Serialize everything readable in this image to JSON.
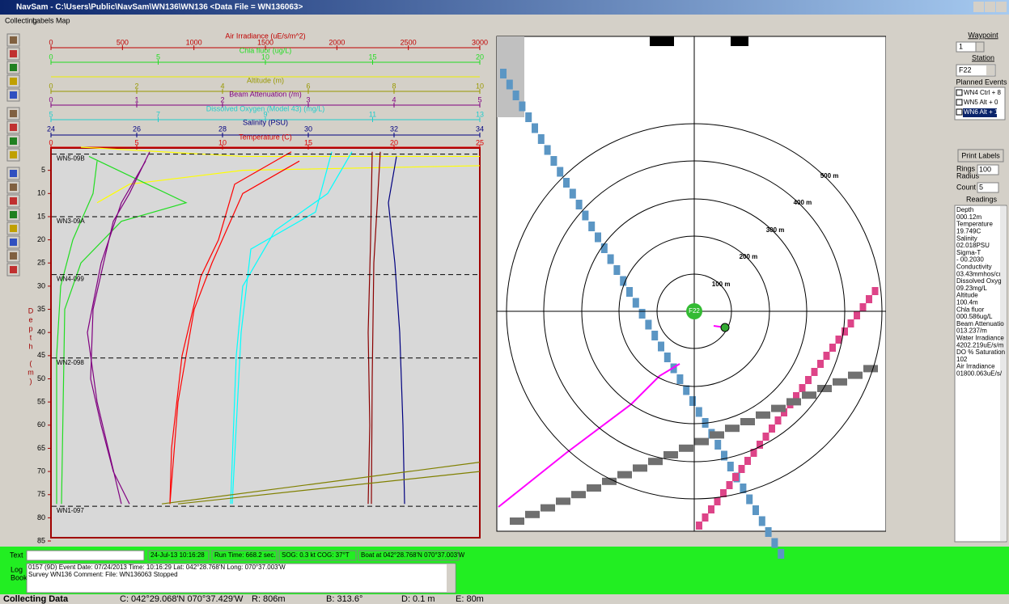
{
  "window": {
    "title": "NavSam - C:\\Users\\Public\\NavSam\\WN136\\WN136 <Data File = WN136063>"
  },
  "menu": [
    "Collecting",
    "Labels",
    "Map"
  ],
  "profile_scales": [
    {
      "title": "Air Irradiance (uE/s/m^2)",
      "color": "#c00000",
      "ticks": [
        "0",
        "500",
        "1000",
        "1500",
        "2000",
        "2500",
        "3000"
      ]
    },
    {
      "title": "Chla fluor (ug/L)",
      "color": "#22dd22",
      "ticks": [
        "0",
        "5",
        "10",
        "15",
        "20"
      ]
    },
    {
      "title": "Altitude (m)",
      "color": "#999900",
      "ticks": [
        "0",
        "2",
        "4",
        "6",
        "8",
        "10"
      ]
    },
    {
      "title": "Beam Attenuation (/m)",
      "color": "#800080",
      "ticks": [
        "0",
        "1",
        "2",
        "3",
        "4",
        "5"
      ]
    },
    {
      "title": "Dissolved Oxygen (Model 43) (mg/L)",
      "color": "#22cccc",
      "ticks": [
        "5",
        "7",
        "9",
        "11",
        "13"
      ]
    },
    {
      "title": "Salinity (PSU)",
      "color": "#000080",
      "ticks": [
        "24",
        "26",
        "28",
        "30",
        "32",
        "34"
      ]
    },
    {
      "title": "Temperature (C)",
      "color": "#dd0000",
      "ticks": [
        "0",
        "5",
        "10",
        "15",
        "20",
        "25"
      ]
    }
  ],
  "depth_axis": {
    "letters": [
      "D",
      "e",
      "p",
      "t",
      "h",
      "(",
      "m",
      ")"
    ],
    "ticks": [
      "5",
      "10",
      "15",
      "20",
      "25",
      "30",
      "35",
      "40",
      "45",
      "50",
      "55",
      "60",
      "65",
      "70",
      "75",
      "80",
      "85"
    ]
  },
  "events": [
    "WN5-09B",
    "WN3-09A",
    "WN4-099",
    "WN2-098",
    "WN1-097"
  ],
  "map": {
    "ring_labels": [
      "100 m",
      "200 m",
      "300 m",
      "400 m",
      "500 m"
    ],
    "station": "F22"
  },
  "side": {
    "waypoint_label": "Waypoint",
    "waypoint": "1",
    "station_label": "Station",
    "station": "F22",
    "planned_label": "Planned Events",
    "planned": [
      "WN4  Ctrl + 8",
      "WN5  Alt + 0",
      "WN6  Alt + 1"
    ],
    "print_labels": "Print Labels",
    "rings": "Rings",
    "radius": "Radius",
    "radius_value": "100",
    "count": "Count",
    "count_value": "5",
    "readings_label": "Readings",
    "readings": [
      "Depth",
      "000.12m",
      "Temperature",
      " 19.749C",
      "Salinity",
      " 02.018PSU",
      "Sigma-T",
      "- 00.2030",
      "Conductivity",
      " 03.43mmhos/cı",
      "Dissolved Oxyg",
      " 09.23mg/L",
      "Altitude",
      " 100.4m",
      "Chla fluor",
      " 000.586ug/L",
      "Beam Attenuatio",
      " 013.237/m",
      "Water Irradiance",
      " 4202.219uE/s/m",
      "DO % Saturation",
      " 102",
      "Air Irradiance",
      "01800.063uE/s/"
    ]
  },
  "status": {
    "text_label": "Text",
    "date": "24-Jul-13  10:16:28",
    "run_time": "Run Time: 668.2 sec.",
    "sog": "SOG: 0.3 kt  COG: 37°T",
    "boat": "Boat at 042°28.768'N  070°37.003'W"
  },
  "log": {
    "label": [
      "Log",
      "Book"
    ],
    "lines": [
      "0157 (9D) Event Date: 07/24/2013 Time: 10:16:29 Lat: 042°28.768'N Long: 070°37.003'W",
      "     Survey WN136  Comment: File: WN136063 Stopped"
    ]
  },
  "bottom": [
    "Collecting Data",
    "C: 042°29.068'N 070°37.429'W",
    "R: 806m",
    "B: 313.6°",
    "D: 0.1 m",
    "E: 80m"
  ]
}
